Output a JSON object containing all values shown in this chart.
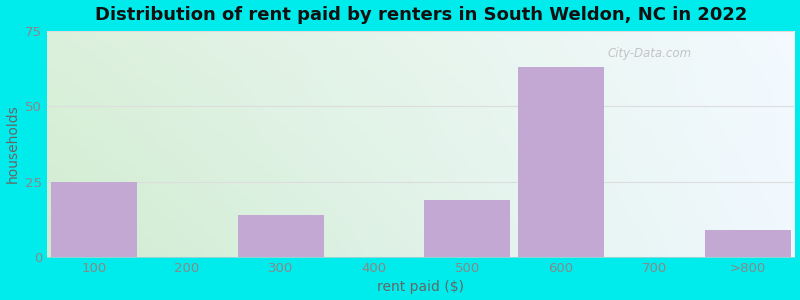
{
  "title": "Distribution of rent paid by renters in South Weldon, NC in 2022",
  "xlabel": "rent paid ($)",
  "ylabel": "households",
  "categories": [
    "100",
    "200",
    "300",
    "400",
    "500",
    "600",
    "700",
    ">800"
  ],
  "values": [
    25,
    0,
    14,
    0,
    19,
    63,
    0,
    9
  ],
  "bar_color": "#c4a8d4",
  "bar_edge_color": "#c4a8d4",
  "ylim": [
    0,
    75
  ],
  "yticks": [
    0,
    25,
    50,
    75
  ],
  "bg_outer": "#00ecec",
  "bg_gradient_colors": [
    "#d8f0d8",
    "#e8f8e0",
    "#f0f8ff",
    "#ffffff"
  ],
  "grid_color": "#dddddd",
  "title_fontsize": 13,
  "axis_label_fontsize": 10,
  "tick_fontsize": 9.5,
  "tick_color": "#888888",
  "watermark_text": "City-Data.com"
}
